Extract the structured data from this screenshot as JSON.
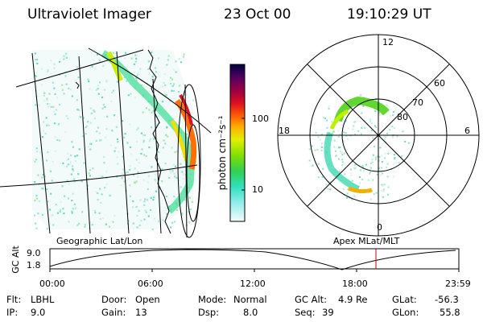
{
  "header": {
    "instrument": "Ultraviolet Imager",
    "date": "23 Oct 00",
    "time": "19:10:29 UT"
  },
  "geo_panel": {
    "label": "Geographic Lat/Lon"
  },
  "polar_panel": {
    "label": "Apex MLat/MLT",
    "mlt_labels": {
      "top": "12",
      "left": "18",
      "right": "6",
      "bottom": "0"
    },
    "lat_labels": [
      "60",
      "70",
      "80"
    ]
  },
  "colorbar": {
    "unit_label": "photon cm⁻²s⁻¹",
    "tick_100": "100",
    "tick_10": "10",
    "colors": [
      "#000040",
      "#400050",
      "#800060",
      "#b00030",
      "#e00020",
      "#ff4000",
      "#ff9000",
      "#ffd000",
      "#d8f000",
      "#90e800",
      "#40d840",
      "#30e0a0",
      "#40e0d8",
      "#a0ecec",
      "#e8f8f8"
    ]
  },
  "altitude_strip": {
    "axis_label": "GC Alt",
    "y_max": "9.0",
    "y_min": "1.8",
    "x_ticks": [
      "00:00",
      "06:00",
      "12:00",
      "18:00",
      "23:59"
    ],
    "current_time_color": "#c00000"
  },
  "info": {
    "flt": {
      "label": "Flt:",
      "value": "LBHL"
    },
    "ip": {
      "label": "IP:",
      "value": "9.0"
    },
    "door": {
      "label": "Door:",
      "value": "Open"
    },
    "gain": {
      "label": "Gain:",
      "value": "13"
    },
    "mode": {
      "label": "Mode:",
      "value": "Normal"
    },
    "dsp": {
      "label": "Dsp:",
      "value": "8.0"
    },
    "gc_alt": {
      "label": "GC Alt:",
      "value": "4.9 Re"
    },
    "seq": {
      "label": "Seq:",
      "value": "39"
    },
    "glat": {
      "label": "GLat:",
      "value": "-56.3"
    },
    "glon": {
      "label": "GLon:",
      "value": "55.8"
    }
  }
}
